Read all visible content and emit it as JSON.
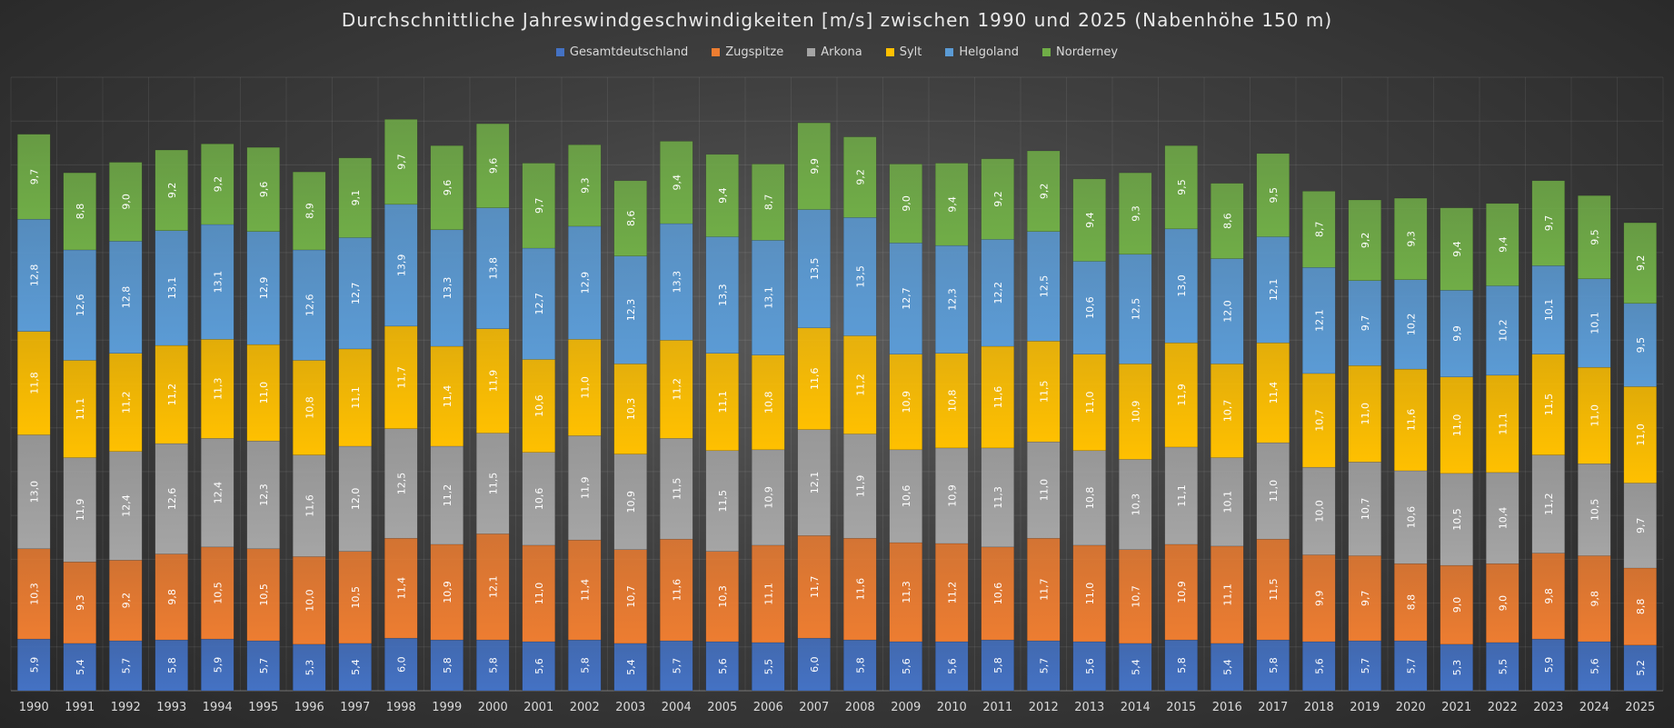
{
  "chart_data": {
    "type": "bar",
    "stacked": true,
    "title": "Durchschnittliche Jahreswindgeschwindigkeiten [m/s] zwischen 1990 und 2025 (Nabenhöhe 150 m)",
    "xlabel": "",
    "ylabel": "",
    "ylim": [
      0,
      70
    ],
    "grid": true,
    "legend_position": "top",
    "categories": [
      "1990",
      "1991",
      "1992",
      "1993",
      "1994",
      "1995",
      "1996",
      "1997",
      "1998",
      "1999",
      "2000",
      "2001",
      "2002",
      "2003",
      "2004",
      "2005",
      "2006",
      "2007",
      "2008",
      "2009",
      "2010",
      "2011",
      "2012",
      "2013",
      "2014",
      "2015",
      "2016",
      "2017",
      "2018",
      "2019",
      "2020",
      "2021",
      "2022",
      "2023",
      "2024",
      "2025"
    ],
    "series": [
      {
        "name": "Gesamtdeutschland",
        "color": "#4472c4",
        "values": [
          5.9,
          5.4,
          5.7,
          5.8,
          5.9,
          5.7,
          5.3,
          5.4,
          6.0,
          5.8,
          5.8,
          5.6,
          5.8,
          5.4,
          5.7,
          5.6,
          5.5,
          6.0,
          5.8,
          5.6,
          5.6,
          5.8,
          5.7,
          5.6,
          5.4,
          5.8,
          5.4,
          5.8,
          5.6,
          5.7,
          5.7,
          5.3,
          5.5,
          5.9,
          5.6,
          5.2
        ]
      },
      {
        "name": "Zugspitze",
        "color": "#ed7d31",
        "values": [
          10.3,
          9.3,
          9.2,
          9.8,
          10.5,
          10.5,
          10.0,
          10.5,
          11.4,
          10.9,
          12.1,
          11.0,
          11.4,
          10.7,
          11.6,
          10.3,
          11.1,
          11.7,
          11.6,
          11.3,
          11.2,
          10.6,
          11.7,
          11.0,
          10.7,
          10.9,
          11.1,
          11.5,
          9.9,
          9.7,
          8.8,
          9.0,
          9.0,
          9.8,
          9.8,
          8.8
        ]
      },
      {
        "name": "Arkona",
        "color": "#a5a5a5",
        "values": [
          13.0,
          11.9,
          12.4,
          12.6,
          12.4,
          12.3,
          11.6,
          12.0,
          12.5,
          11.2,
          11.5,
          10.6,
          11.9,
          10.9,
          11.5,
          11.5,
          10.9,
          12.1,
          11.9,
          10.6,
          10.9,
          11.3,
          11.0,
          10.8,
          10.3,
          11.1,
          10.1,
          11.0,
          10.0,
          10.7,
          10.6,
          10.5,
          10.4,
          11.2,
          10.5,
          9.7
        ]
      },
      {
        "name": "Sylt",
        "color": "#ffc000",
        "values": [
          11.8,
          11.1,
          11.2,
          11.2,
          11.3,
          11.0,
          10.8,
          11.1,
          11.7,
          11.4,
          11.9,
          10.6,
          11.0,
          10.3,
          11.2,
          11.1,
          10.8,
          11.6,
          11.2,
          10.9,
          10.8,
          11.6,
          11.5,
          11.0,
          10.9,
          11.9,
          10.7,
          11.4,
          10.7,
          11.0,
          11.6,
          11.0,
          11.1,
          11.5,
          11.0,
          11.0
        ]
      },
      {
        "name": "Helgoland",
        "color": "#5b9bd5",
        "values": [
          12.8,
          12.6,
          12.8,
          13.1,
          13.1,
          12.9,
          12.6,
          12.7,
          13.9,
          13.3,
          13.8,
          12.7,
          12.9,
          12.3,
          13.3,
          13.3,
          13.1,
          13.5,
          13.5,
          12.7,
          12.3,
          12.2,
          12.5,
          10.6,
          12.5,
          13.0,
          12.0,
          12.1,
          12.1,
          9.7,
          10.2,
          9.9,
          10.2,
          10.1,
          10.1,
          9.5
        ]
      },
      {
        "name": "Norderney",
        "color": "#70ad47",
        "values": [
          9.7,
          8.8,
          9.0,
          9.2,
          9.2,
          9.6,
          8.9,
          9.1,
          9.7,
          9.6,
          9.6,
          9.7,
          9.3,
          8.6,
          9.4,
          9.4,
          8.7,
          9.9,
          9.2,
          9.0,
          9.4,
          9.2,
          9.2,
          9.4,
          9.3,
          9.5,
          8.6,
          9.5,
          8.7,
          9.2,
          9.3,
          9.4,
          9.4,
          9.7,
          9.5,
          9.2
        ]
      }
    ]
  }
}
